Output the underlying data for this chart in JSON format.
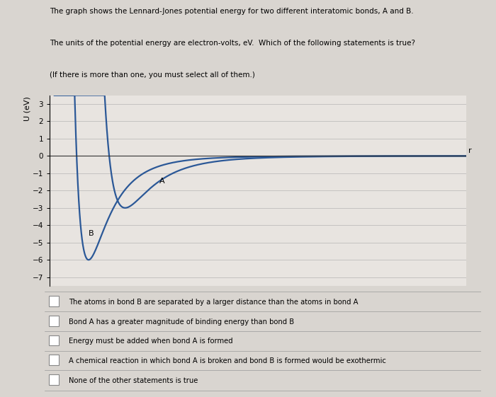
{
  "title_line1": "The graph shows the Lennard-Jones potential energy for two different interatomic bonds, A and B.",
  "title_line2": "The units of the potential energy are electron-volts, eV.  Which of the following statements is true?",
  "title_line3": "(If there is more than one, you must select all of them.)",
  "ylabel": "U (eV)",
  "xlabel_right": "r",
  "ylim": [
    -7.5,
    3.5
  ],
  "yticks": [
    -7,
    -6,
    -5,
    -4,
    -3,
    -2,
    -1,
    0,
    1,
    2,
    3
  ],
  "curve_color": "#2b5897",
  "background_color": "#d9d5d0",
  "plot_bg_color": "#e8e4e0",
  "label_A": "A",
  "label_B": "B",
  "epsilon_A": 3.0,
  "r_min_A": 0.3,
  "epsilon_B": 6.0,
  "r_min_B": 0.225,
  "checkbox_items": [
    "The atoms in bond B are separated by a larger distance than the atoms in bond A",
    "Bond A has a greater magnitude of binding energy than bond B",
    "Energy must be added when bond A is formed",
    "A chemical reaction in which bond A is broken and bond B is formed would be exothermic",
    "None of the other statements is true"
  ]
}
